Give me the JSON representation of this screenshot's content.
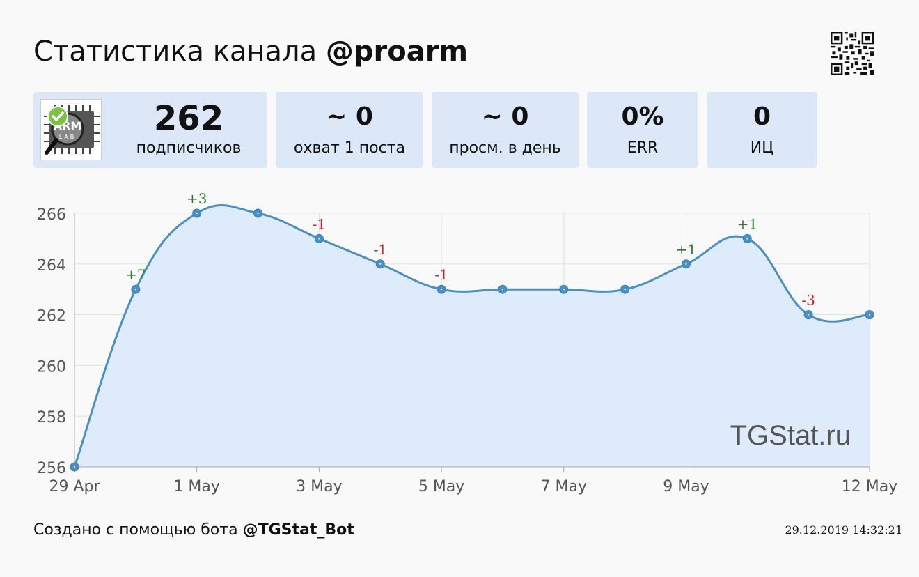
{
  "header": {
    "title_prefix": "Статистика канала",
    "channel": "@proarm"
  },
  "stats": {
    "subscribers": {
      "value": "262",
      "label": "подписчиков"
    },
    "reach": {
      "value": "~ 0",
      "label": "охват 1 поста"
    },
    "daily_views": {
      "value": "~ 0",
      "label": "просм. в день"
    },
    "err": {
      "value": "0%",
      "label": "ERR"
    },
    "ic": {
      "value": "0",
      "label": "ИЦ"
    }
  },
  "avatar": {
    "text_top": "ARM",
    "text_bottom": "LAB",
    "badge_color": "#7cc242"
  },
  "chart_data": {
    "type": "area",
    "title": "",
    "xlabel": "",
    "ylabel": "",
    "x": [
      "29 Apr",
      "30 Apr",
      "1 May",
      "2 May",
      "3 May",
      "4 May",
      "5 May",
      "6 May",
      "7 May",
      "8 May",
      "9 May",
      "10 May",
      "11 May",
      "12 May"
    ],
    "series": [
      {
        "values": [
          256,
          263,
          266,
          266,
          265,
          264,
          263,
          263,
          263,
          263,
          264,
          265,
          262,
          262
        ]
      }
    ],
    "annotations": [
      {
        "x": "30 Apr",
        "text": "+7",
        "color": "#2e7d2e"
      },
      {
        "x": "1 May",
        "text": "+3",
        "color": "#2e7d2e"
      },
      {
        "x": "3 May",
        "text": "-1",
        "color": "#cc2222"
      },
      {
        "x": "4 May",
        "text": "-1",
        "color": "#cc2222"
      },
      {
        "x": "5 May",
        "text": "-1",
        "color": "#cc2222"
      },
      {
        "x": "9 May",
        "text": "+1",
        "color": "#2e7d2e"
      },
      {
        "x": "10 May",
        "text": "+1",
        "color": "#2e7d2e"
      },
      {
        "x": "11 May",
        "text": "-3",
        "color": "#cc2222"
      }
    ],
    "x_ticks": [
      "29 Apr",
      "1 May",
      "3 May",
      "5 May",
      "7 May",
      "9 May",
      "12 May"
    ],
    "y_ticks": [
      256,
      258,
      260,
      262,
      264,
      266
    ],
    "ylim": [
      256,
      266
    ],
    "grid": true,
    "line_color": "#4a90c2",
    "fill_color": "#deebfb",
    "watermark": "TGStat.ru"
  },
  "footer": {
    "created_prefix": "Создано с помощью бота",
    "bot": "@TGStat_Bot",
    "timestamp": "29.12.2019 14:32:21"
  }
}
